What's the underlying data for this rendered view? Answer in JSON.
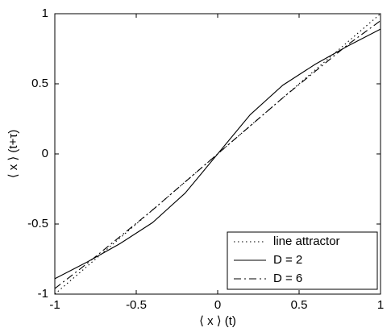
{
  "chart_data": {
    "type": "line",
    "x_label": "⟨ x ⟩ (t)",
    "y_label": "⟨ x ⟩ (t+τ)",
    "x": [
      -1,
      -0.8,
      -0.6,
      -0.4,
      -0.2,
      0,
      0.2,
      0.4,
      0.6,
      0.8,
      1
    ],
    "series": [
      {
        "name": "line attractor",
        "color": "#000000",
        "dash": "dotted",
        "values": [
          -1,
          -0.8,
          -0.6,
          -0.4,
          -0.2,
          0,
          0.2,
          0.4,
          0.6,
          0.8,
          1
        ]
      },
      {
        "name": "D = 2",
        "color": "#000000",
        "dash": "solid",
        "values": [
          -0.89,
          -0.77,
          -0.64,
          -0.49,
          -0.28,
          0,
          0.28,
          0.49,
          0.64,
          0.77,
          0.89
        ]
      },
      {
        "name": "D = 6",
        "color": "#000000",
        "dash": "dashdot",
        "values": [
          -0.96,
          -0.78,
          -0.59,
          -0.4,
          -0.2,
          0,
          0.2,
          0.4,
          0.59,
          0.78,
          0.95
        ]
      }
    ],
    "xlim": [
      -1,
      1
    ],
    "ylim": [
      -1,
      1
    ],
    "xticks": [
      -1,
      -0.5,
      0,
      0.5,
      1
    ],
    "yticks": [
      -1,
      -0.5,
      0,
      0.5,
      1
    ],
    "grid": false,
    "legend": "lower right"
  }
}
